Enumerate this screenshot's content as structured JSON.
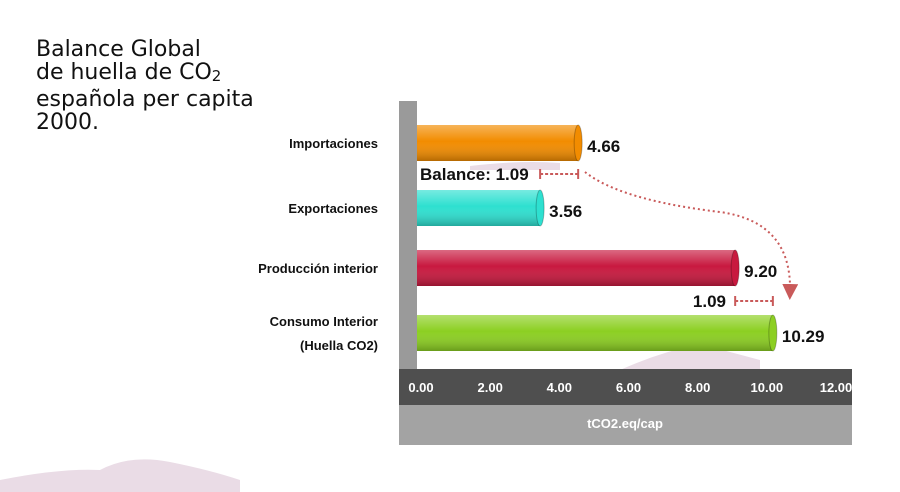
{
  "title": {
    "line1": "Balance Global",
    "line2_pre": "de huella de CO",
    "line2_sub": "2",
    "line3": "española per capita",
    "line4": "2000."
  },
  "chart_data": {
    "type": "bar",
    "orientation": "horizontal",
    "title": "Balance Global de huella de CO2 española per capita 2000.",
    "categories": [
      [
        "Importaciones"
      ],
      [
        "Exportaciones"
      ],
      [
        "Producción interior"
      ],
      [
        "Consumo Interior",
        "(Huella CO2)"
      ]
    ],
    "values": [
      4.66,
      3.56,
      9.2,
      10.29
    ],
    "value_labels": [
      "4.66",
      "3.56",
      "9.20",
      "10.29"
    ],
    "colors": [
      "#f28c00",
      "#2ee0d0",
      "#c8193f",
      "#8ccf22"
    ],
    "xlim": [
      0,
      12
    ],
    "xticks": [
      "0.00",
      "2.00",
      "4.00",
      "6.00",
      "8.00",
      "10.00",
      "12.00"
    ],
    "xlabel": "tCO2.eq/cap",
    "annotations": [
      {
        "label": "Balance: 1.09",
        "from": 3.56,
        "to": 4.66
      },
      {
        "label": "1.09",
        "from": 9.2,
        "to": 10.29
      }
    ]
  }
}
